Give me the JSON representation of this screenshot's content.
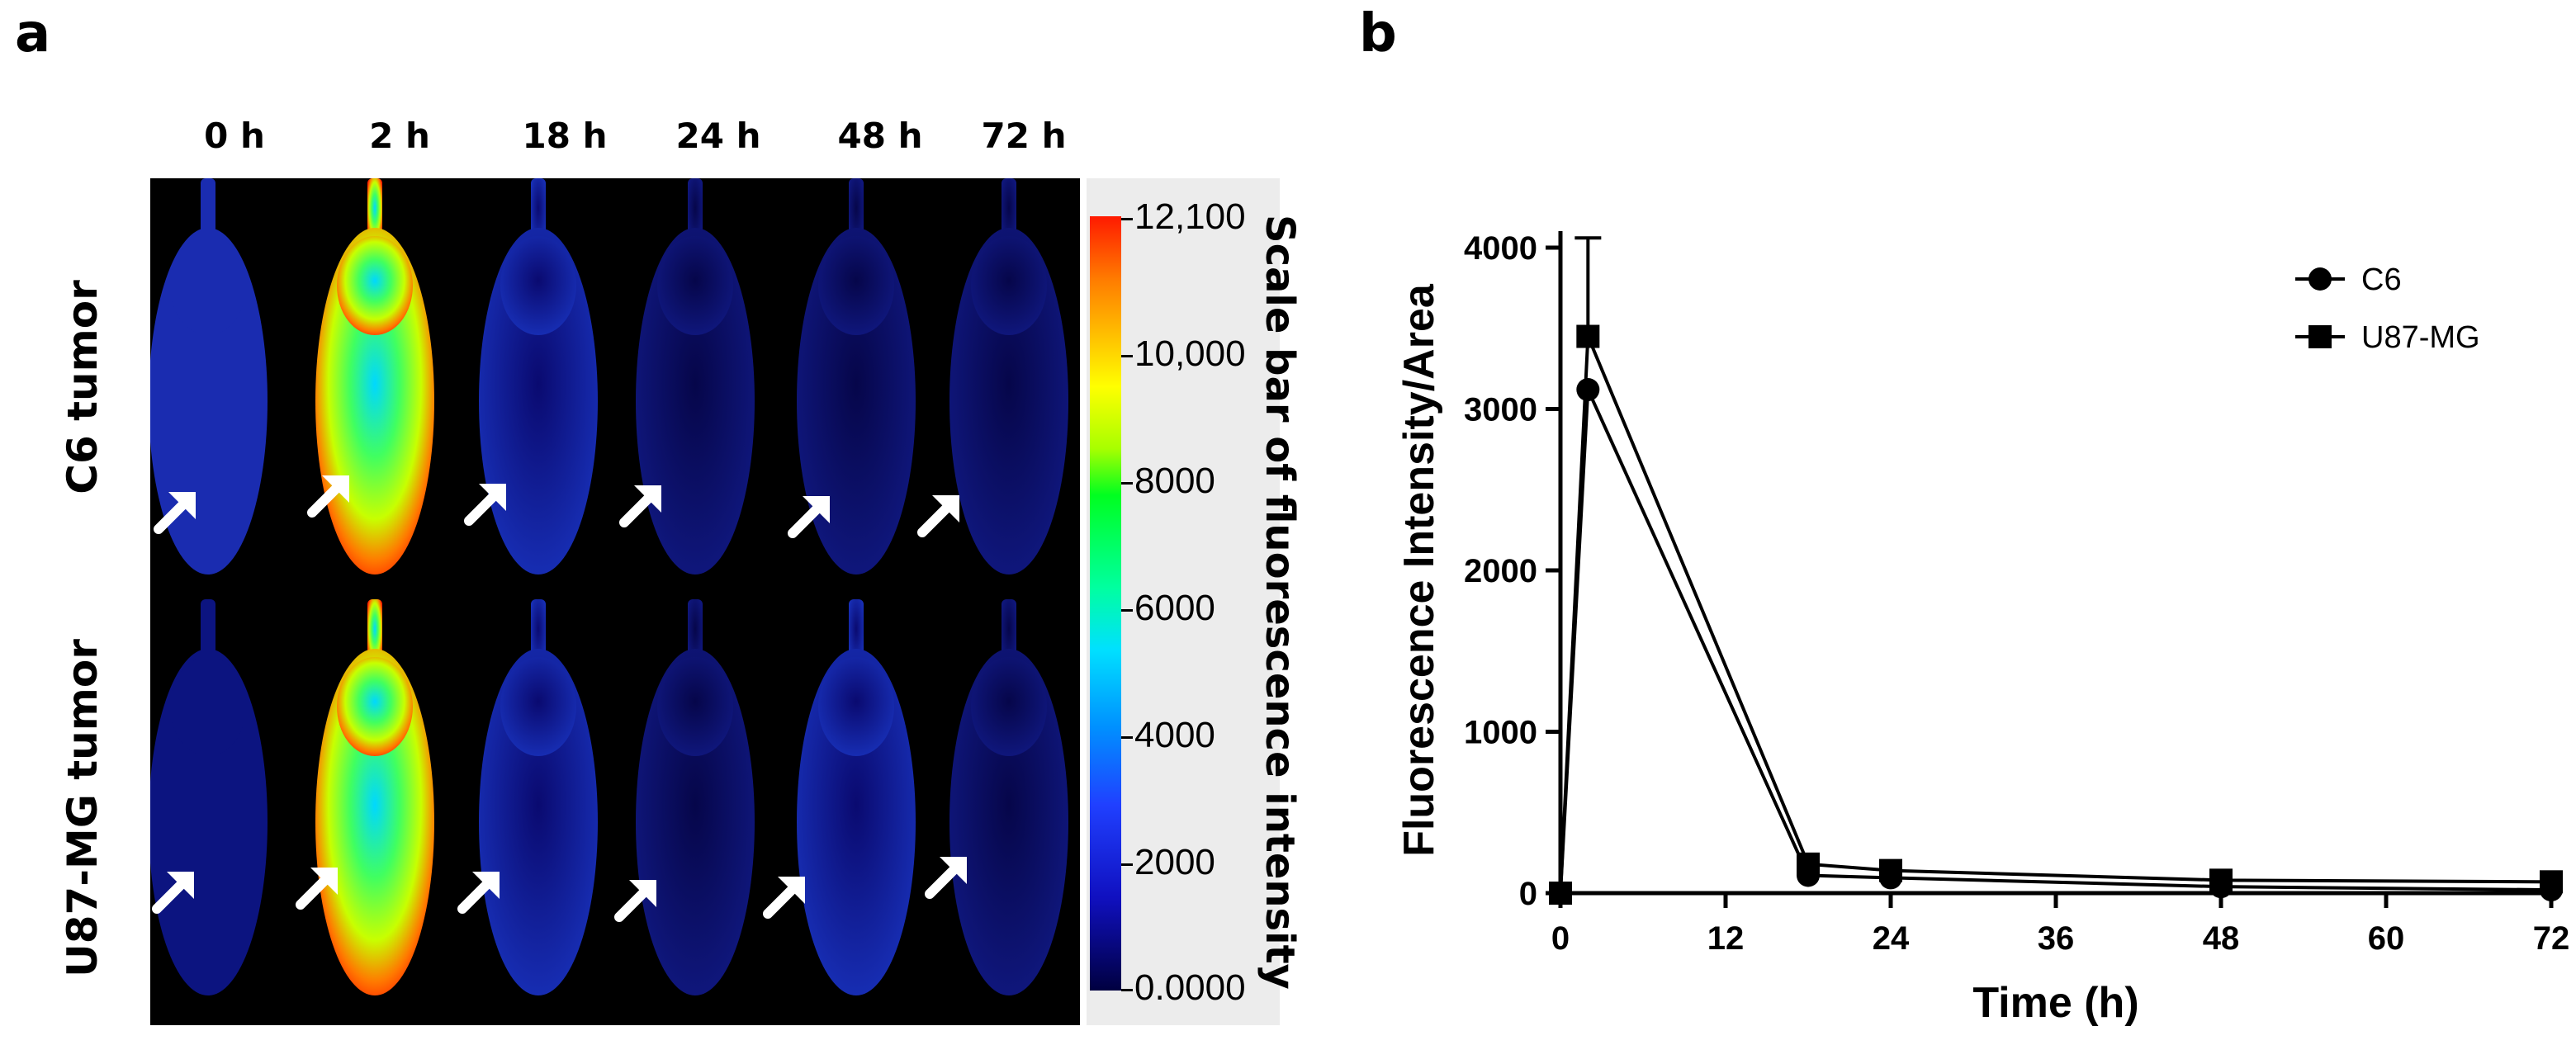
{
  "panel_a": {
    "letter": "a",
    "time_labels": [
      "0 h",
      "2 h",
      "18 h",
      "24 h",
      "48 h",
      "72 h"
    ],
    "row_labels": [
      "C6 tumor",
      "U87-MG tumor"
    ],
    "colorbar": {
      "title": "Scale bar of fluorescence intensity",
      "ticks": [
        "12,100",
        "10,000",
        "8000",
        "6000",
        "4000",
        "2000",
        "0.0000"
      ]
    }
  },
  "panel_b": {
    "letter": "b"
  },
  "chart_data": {
    "type": "line",
    "xlabel": "Time (h)",
    "ylabel": "Fluorescence Intensity/Area",
    "xlim": [
      0,
      72
    ],
    "ylim": [
      0,
      4000
    ],
    "xticks": [
      0,
      12,
      24,
      36,
      48,
      60,
      72
    ],
    "yticks": [
      0,
      1000,
      2000,
      3000,
      4000
    ],
    "legend_position": "top-right",
    "grid": false,
    "series": [
      {
        "name": "C6",
        "marker": "circle",
        "x": [
          0,
          2,
          18,
          24,
          48,
          72
        ],
        "y": [
          0,
          3120,
          110,
          95,
          40,
          20
        ],
        "err": [
          0,
          0,
          0,
          0,
          0,
          0
        ]
      },
      {
        "name": "U87-MG",
        "marker": "square",
        "x": [
          0,
          2,
          18,
          24,
          48,
          72
        ],
        "y": [
          0,
          3450,
          180,
          140,
          80,
          70
        ],
        "err": [
          0,
          610,
          0,
          0,
          0,
          0
        ]
      }
    ]
  }
}
